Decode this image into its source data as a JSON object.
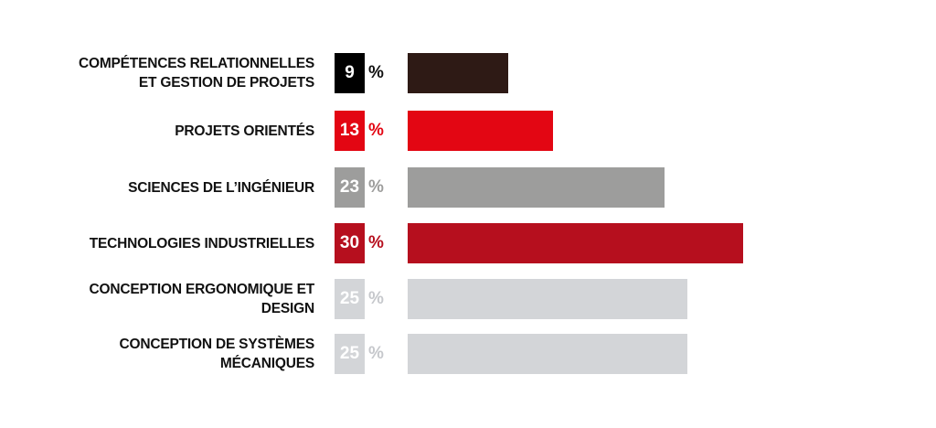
{
  "chart_data": {
    "type": "bar",
    "orientation": "horizontal",
    "title": "",
    "xlabel": "",
    "ylabel": "",
    "unit": "%",
    "xlim": [
      0,
      30
    ],
    "grid": false,
    "categories": [
      "COMPÉTENCES RELATIONNELLES\nET GESTION DE PROJETS",
      "PROJETS ORIENTÉS",
      "SCIENCES DE L’INGÉNIEUR",
      "TECHNOLOGIES INDUSTRIELLES",
      "CONCEPTION ERGONOMIQUE ET\nDESIGN",
      "CONCEPTION DE SYSTÈMES\nMÉCANIQUES"
    ],
    "values": [
      9,
      13,
      23,
      30,
      25,
      25
    ],
    "value_labels": [
      "9",
      "13",
      "23",
      "30",
      "25",
      "25"
    ],
    "percent_sign": "%",
    "bar_colors": [
      "#2e1a15",
      "#e30613",
      "#9d9d9c",
      "#b60f1e",
      "#d3d5d8",
      "#d3d5d8"
    ],
    "value_box_colors": [
      "#000000",
      "#e30613",
      "#9d9d9c",
      "#b60f1e",
      "#d3d5d8",
      "#d3d5d8"
    ],
    "percent_sign_colors": [
      "#111111",
      "#e30613",
      "#9d9d9c",
      "#b60f1e",
      "#c6c8cc",
      "#c6c8cc"
    ]
  }
}
